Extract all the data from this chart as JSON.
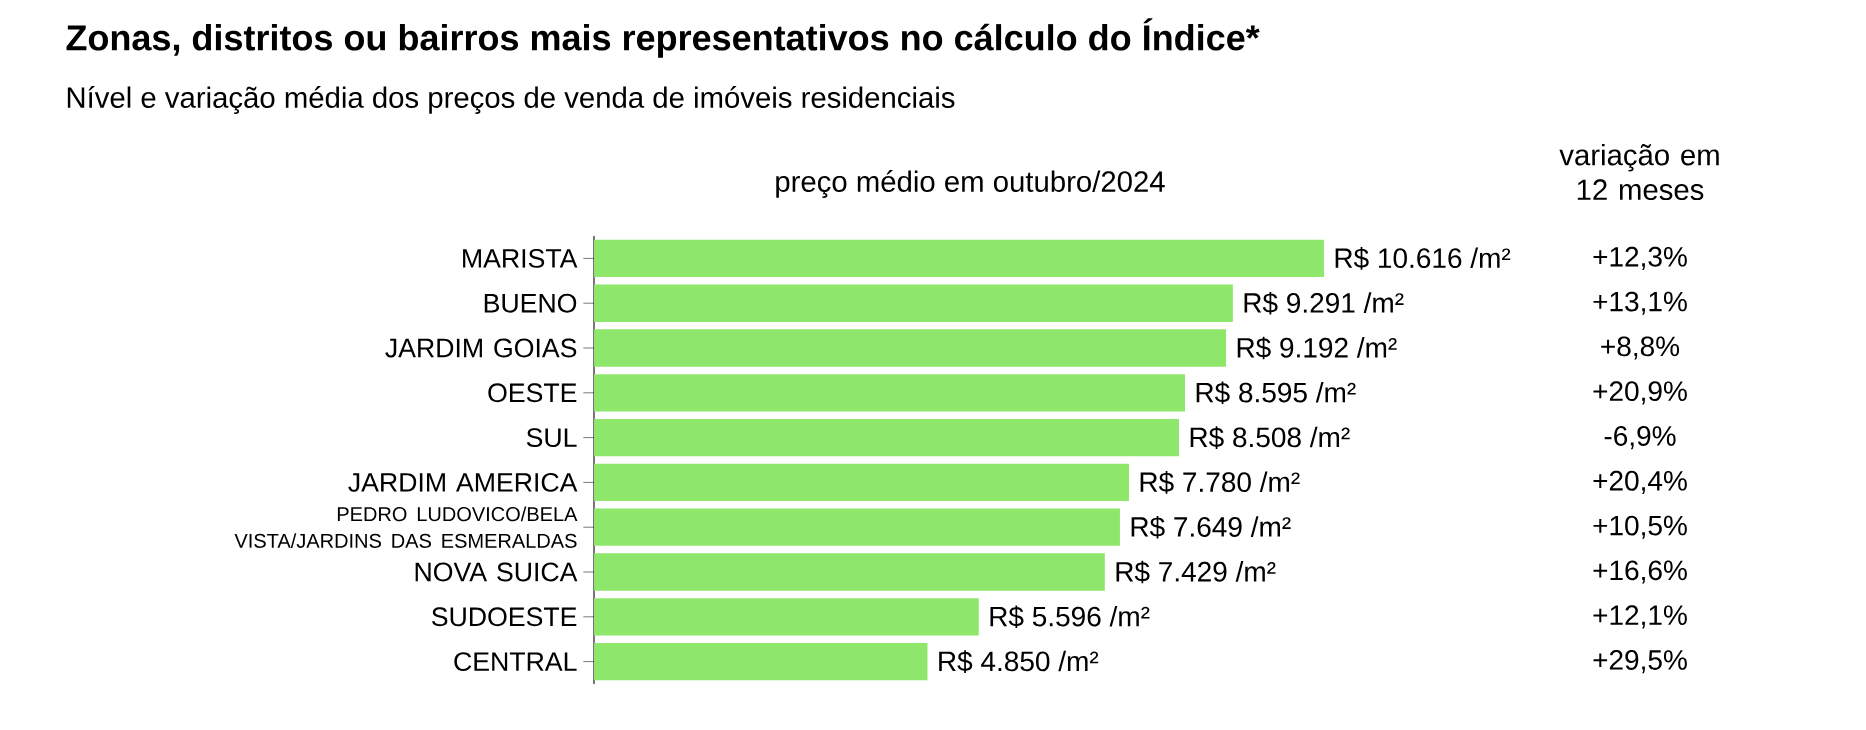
{
  "chart_data": {
    "type": "bar",
    "orientation": "horizontal",
    "title": "Zonas, distritos ou bairros mais representativos no cálculo do Índice*",
    "subtitle": "Nível e variação média dos preços de venda de imóveis residenciais",
    "xlabel": "preço médio em outubro/2024",
    "categories": [
      "MARISTA",
      "BUENO",
      "JARDIM GOIAS",
      "OESTE",
      "SUL",
      "JARDIM AMERICA",
      "PEDRO LUDOVICO/BELA VISTA/JARDINS DAS ESMERALDAS",
      "NOVA SUICA",
      "SUDOESTE",
      "CENTRAL"
    ],
    "values": [
      10616,
      9291,
      9192,
      8595,
      8508,
      7780,
      7649,
      7429,
      5596,
      4850
    ],
    "value_labels": [
      "R$ 10.616 /m²",
      "R$ 9.291 /m²",
      "R$ 9.192 /m²",
      "R$ 8.595 /m²",
      "R$ 8.508 /m²",
      "R$ 7.780 /m²",
      "R$ 7.649 /m²",
      "R$ 7.429 /m²",
      "R$ 5.596 /m²",
      "R$ 4.850 /m²"
    ],
    "color": "#8ee66a",
    "tick_labels": "y",
    "annotations": [
      "variação em 12 meses",
      "+12,3%",
      "+13,1%",
      "+8,8%",
      "+20,9%",
      "-6,9%",
      "+20,4%",
      "+10,5%",
      "+16,6%",
      "+12,1%",
      "+29,5%"
    ]
  }
}
